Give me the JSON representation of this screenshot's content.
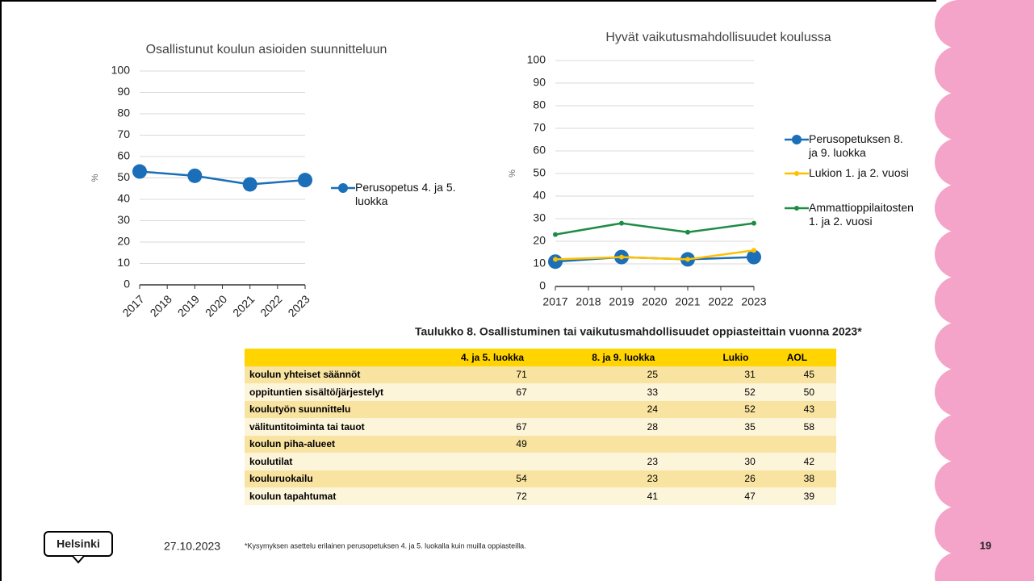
{
  "chart_data": [
    {
      "type": "line",
      "title": "Osallistunut koulun asioiden suunnitteluun",
      "y_label": "%",
      "x": [
        2017,
        2019,
        2021,
        2023
      ],
      "xlim": [
        2017,
        2023
      ],
      "xticks": [
        2017,
        2018,
        2019,
        2020,
        2021,
        2022,
        2023
      ],
      "ylim": [
        0,
        100
      ],
      "yticks": [
        0,
        10,
        20,
        30,
        40,
        50,
        60,
        70,
        80,
        90,
        100
      ],
      "grid": true,
      "series": [
        {
          "name": "Perusopetus 4. ja 5. luokka",
          "color": "#1a6fb8",
          "values": [
            53,
            51,
            47,
            49
          ]
        }
      ]
    },
    {
      "type": "line",
      "title": "Hyvät vaikutusmahdollisuudet koulussa",
      "y_label": "%",
      "x": [
        2017,
        2019,
        2021,
        2023
      ],
      "xlim": [
        2017,
        2023
      ],
      "xticks": [
        2017,
        2018,
        2019,
        2020,
        2021,
        2022,
        2023
      ],
      "ylim": [
        0,
        100
      ],
      "yticks": [
        0,
        10,
        20,
        30,
        40,
        50,
        60,
        70,
        80,
        90,
        100
      ],
      "grid": true,
      "series": [
        {
          "name": "Perusopetuksen 8. ja 9. luokka",
          "color": "#1a6fb8",
          "values": [
            11,
            13,
            12,
            13
          ]
        },
        {
          "name": "Lukion 1. ja 2. vuosi",
          "color": "#ffc000",
          "values": [
            12,
            13,
            12,
            16
          ]
        },
        {
          "name": "Ammattioppilaitosten 1. ja 2. vuosi",
          "color": "#1e8c45",
          "values": [
            23,
            28,
            24,
            28
          ]
        }
      ]
    }
  ],
  "table": {
    "title": "Taulukko 8. Osallistuminen tai vaikutusmahdollisuudet oppiasteittain vuonna 2023*",
    "columns": [
      "4. ja 5. luokka",
      "8. ja 9. luokka",
      "Lukio",
      "AOL"
    ],
    "rows": [
      {
        "label": "koulun yhteiset säännöt",
        "values": [
          71,
          25,
          31,
          45
        ]
      },
      {
        "label": "oppituntien sisältö/järjestelyt",
        "values": [
          67,
          33,
          52,
          50
        ]
      },
      {
        "label": "koulutyön suunnittelu",
        "values": [
          null,
          24,
          52,
          43
        ]
      },
      {
        "label": "välituntitoiminta tai tauot",
        "values": [
          67,
          28,
          35,
          58
        ]
      },
      {
        "label": "koulun piha-alueet",
        "values": [
          49,
          null,
          null,
          null
        ]
      },
      {
        "label": "koulutilat",
        "values": [
          null,
          23,
          30,
          42
        ]
      },
      {
        "label": "kouluruokailu",
        "values": [
          54,
          23,
          26,
          38
        ]
      },
      {
        "label": "koulun tapahtumat",
        "values": [
          72,
          41,
          47,
          39
        ]
      }
    ],
    "footnote": "*Kysymyksen asettelu erilainen perusopetuksen 4. ja 5. luokalla kuin muilla oppiasteilla."
  },
  "footer": {
    "logo": "Helsinki",
    "date": "27.10.2023",
    "page": "19"
  }
}
